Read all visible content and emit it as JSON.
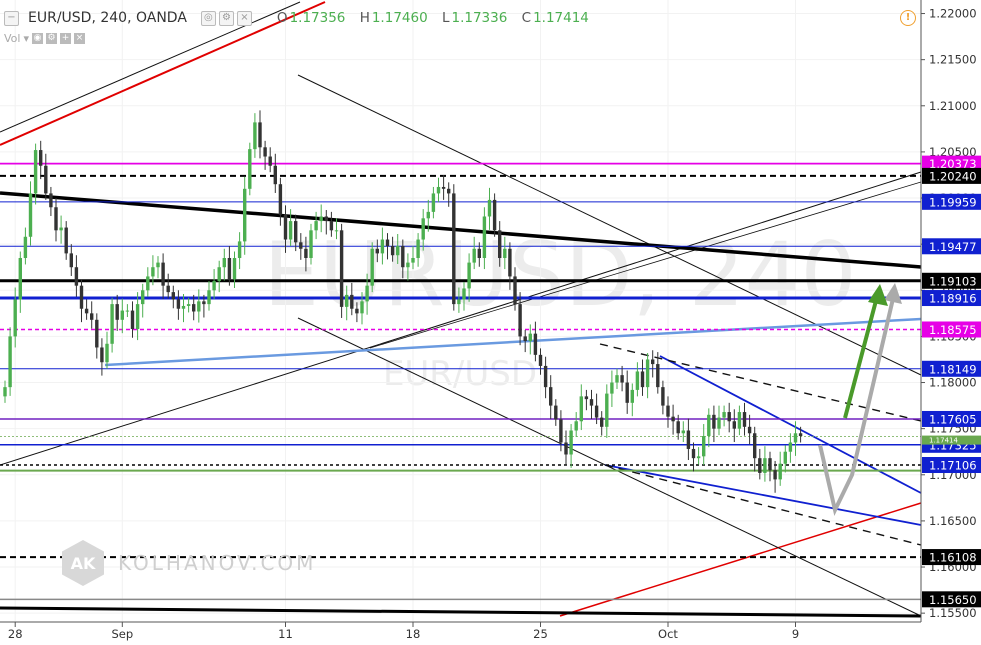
{
  "header": {
    "symbol": "EUR/USD, 240, OANDA",
    "ohlc": [
      {
        "label": "O",
        "value": "1.17356"
      },
      {
        "label": "H",
        "value": "1.17460"
      },
      {
        "label": "L",
        "value": "1.17336"
      },
      {
        "label": "C",
        "value": "1.17414"
      }
    ],
    "vol_label": "Vol"
  },
  "watermark": {
    "main": "EURUSD, 240",
    "sub": "EUR/USD"
  },
  "branding": {
    "logo_letters": "AK",
    "site": "KOLHANOV.COM"
  },
  "colors": {
    "up": "#4caf50",
    "down": "#333333",
    "magenta": "#e600e6",
    "blue": "#1020d0",
    "black": "#000000",
    "red": "#e00000",
    "lightblue": "#6a9ae0",
    "green_arrow": "#4a9a2a",
    "gray_arrow": "#aaaaaa"
  },
  "chart_data": {
    "type": "line",
    "title": "EUR/USD, 240, OANDA",
    "xlabel": "",
    "ylabel": "",
    "ylim": [
      1.1548,
      1.2206
    ],
    "x_ticks": [
      {
        "label": "28",
        "i": 2
      },
      {
        "label": "Sep",
        "i": 23
      },
      {
        "label": "11",
        "i": 55
      },
      {
        "label": "18",
        "i": 80
      },
      {
        "label": "25",
        "i": 105
      },
      {
        "label": "Oct",
        "i": 130
      },
      {
        "label": "9",
        "i": 155
      }
    ],
    "y_ticks": [
      "1.22000",
      "1.21500",
      "1.21000",
      "1.20500",
      "1.20000",
      "1.19500",
      "1.19000",
      "1.18500",
      "1.18000",
      "1.17500",
      "1.17000",
      "1.16500",
      "1.16000",
      "1.15500"
    ],
    "series": [
      {
        "values": [
          1.1795,
          1.185,
          1.189,
          1.1935,
          1.1958,
          1.2005,
          1.2052,
          1.2035,
          1.2005,
          1.199,
          1.1965,
          1.1968,
          1.194,
          1.1925,
          1.1905,
          1.188,
          1.1875,
          1.1868,
          1.1838,
          1.1822,
          1.1842,
          1.1885,
          1.1868,
          1.1878,
          1.1878,
          1.1858,
          1.1885,
          1.19,
          1.1915,
          1.1925,
          1.193,
          1.1905,
          1.1898,
          1.189,
          1.188,
          1.1883,
          1.1885,
          1.1877,
          1.1888,
          1.1885,
          1.19,
          1.191,
          1.1925,
          1.1935,
          1.1912,
          1.1935,
          1.1953,
          1.201,
          1.2053,
          1.2082,
          1.2055,
          1.2045,
          1.2035,
          1.2015,
          1.1982,
          1.1955,
          1.1975,
          1.1952,
          1.1945,
          1.1935,
          1.1965,
          1.1975,
          1.198,
          1.1975,
          1.1965,
          1.1965,
          1.1882,
          1.1895,
          1.188,
          1.1875,
          1.1888,
          1.1905,
          1.1945,
          1.194,
          1.1955,
          1.1948,
          1.1938,
          1.1948,
          1.1925,
          1.193,
          1.1935,
          1.1955,
          1.1978,
          1.1985,
          1.2005,
          1.2012,
          1.201,
          1.2005,
          1.1885,
          1.189,
          1.1902,
          1.193,
          1.1945,
          1.1935,
          1.198,
          1.1998,
          1.1965,
          1.1935,
          1.1945,
          1.1915,
          1.1885,
          1.185,
          1.1845,
          1.1853,
          1.183,
          1.1818,
          1.1795,
          1.1775,
          1.176,
          1.1735,
          1.1722,
          1.1748,
          1.1758,
          1.1785,
          1.1782,
          1.1775,
          1.1762,
          1.1752,
          1.1788,
          1.18,
          1.1808,
          1.18,
          1.1778,
          1.1792,
          1.1812,
          1.1795,
          1.1825,
          1.182,
          1.1795,
          1.1775,
          1.1763,
          1.1758,
          1.1745,
          1.1748,
          1.1728,
          1.1718,
          1.172,
          1.1742,
          1.1765,
          1.175,
          1.1762,
          1.1768,
          1.1758,
          1.175,
          1.1768,
          1.1752,
          1.1745,
          1.1718,
          1.1702,
          1.1718,
          1.1705,
          1.1695,
          1.1712,
          1.1725,
          1.1735,
          1.1745,
          1.1742
        ]
      }
    ],
    "horizontal_levels": [
      {
        "price": "1.20373",
        "style": "magenta"
      },
      {
        "price": "1.20240",
        "style": "black-dashed"
      },
      {
        "price": "1.19959",
        "style": "blue-thin"
      },
      {
        "price": "1.19477",
        "style": "blue-thin"
      },
      {
        "price": "1.19103",
        "style": "black-thick"
      },
      {
        "price": "1.18916",
        "style": "blue-thick"
      },
      {
        "price": "1.18575",
        "style": "magenta-dashed"
      },
      {
        "price": "1.18149",
        "style": "blue-thin"
      },
      {
        "price": "1.17605",
        "style": "purple"
      },
      {
        "price": "1.17325",
        "style": "blue"
      },
      {
        "price": "1.17106",
        "style": "black-dotted"
      },
      {
        "price": "1.16108",
        "style": "black-dashed"
      },
      {
        "price": "1.15650",
        "style": "gray"
      }
    ],
    "current_price": "1.17414",
    "current_price_display": "1.17414"
  }
}
